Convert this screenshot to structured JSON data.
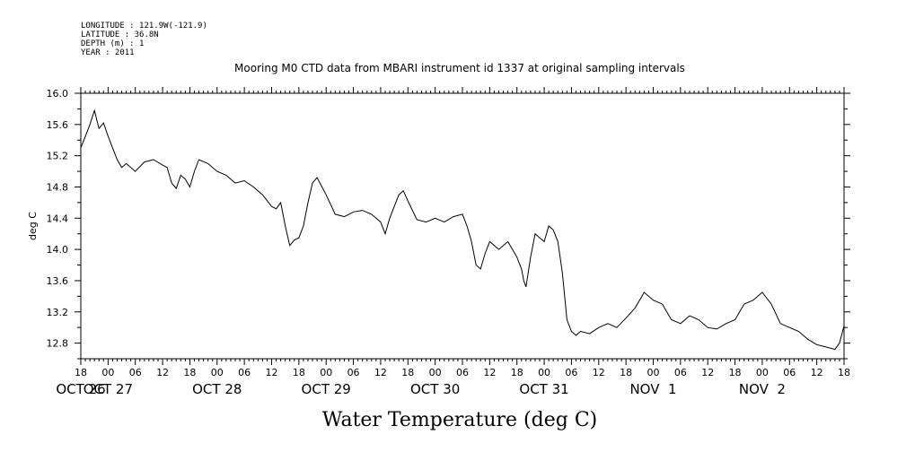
{
  "header": {
    "longitude": "LONGITUDE : 121.9W(-121.9)",
    "latitude": "LATITUDE : 36.8N",
    "depth": "DEPTH (m) : 1",
    "year": "YEAR : 2011"
  },
  "chart_data": {
    "type": "line",
    "title": "Mooring M0 CTD data from MBARI instrument id 1337 at original sampling intervals",
    "xlabel": "Water Temperature (deg C)",
    "ylabel": "deg C",
    "ylim": [
      12.6,
      16.0
    ],
    "yticks": [
      "12.8",
      "13.2",
      "13.6",
      "14.0",
      "14.4",
      "14.8",
      "15.2",
      "15.6",
      "16.0"
    ],
    "xlim": [
      "2011-10-26T18:00",
      "2011-11-02T18:00"
    ],
    "xtick_hours": [
      "18",
      "00",
      "06",
      "12",
      "18",
      "00",
      "06",
      "12",
      "18",
      "00",
      "06",
      "12",
      "18",
      "00",
      "06",
      "12",
      "18",
      "00",
      "06",
      "12",
      "18",
      "00",
      "06",
      "12",
      "18",
      "00",
      "06",
      "12",
      "18"
    ],
    "day_labels": [
      "OCT 26",
      "OCT 27",
      "OCT 28",
      "OCT 29",
      "OCT 30",
      "OCT 31",
      "NOV  1",
      "NOV  2"
    ],
    "grid": false,
    "series": [
      {
        "x": [
          "2011-10-26T18:00",
          "2011-10-26T19:00",
          "2011-10-26T20:00",
          "2011-10-26T21:00",
          "2011-10-26T22:00",
          "2011-10-26T23:00",
          "2011-10-27T00:00",
          "2011-10-27T01:00",
          "2011-10-27T02:00",
          "2011-10-27T03:00",
          "2011-10-27T04:00",
          "2011-10-27T06:00",
          "2011-10-27T08:00",
          "2011-10-27T10:00",
          "2011-10-27T12:00",
          "2011-10-27T13:00",
          "2011-10-27T14:00",
          "2011-10-27T15:00",
          "2011-10-27T16:00",
          "2011-10-27T17:00",
          "2011-10-27T18:00",
          "2011-10-27T19:00",
          "2011-10-27T20:00",
          "2011-10-27T22:00",
          "2011-10-28T00:00",
          "2011-10-28T02:00",
          "2011-10-28T04:00",
          "2011-10-28T06:00",
          "2011-10-28T08:00",
          "2011-10-28T10:00",
          "2011-10-28T12:00",
          "2011-10-28T13:00",
          "2011-10-28T14:00",
          "2011-10-28T15:00",
          "2011-10-28T16:00",
          "2011-10-28T17:00",
          "2011-10-28T18:00",
          "2011-10-28T19:00",
          "2011-10-28T20:00",
          "2011-10-28T21:00",
          "2011-10-28T22:00",
          "2011-10-29T00:00",
          "2011-10-29T02:00",
          "2011-10-29T04:00",
          "2011-10-29T06:00",
          "2011-10-29T08:00",
          "2011-10-29T10:00",
          "2011-10-29T12:00",
          "2011-10-29T13:00",
          "2011-10-29T14:00",
          "2011-10-29T15:00",
          "2011-10-29T16:00",
          "2011-10-29T17:00",
          "2011-10-29T18:00",
          "2011-10-29T19:00",
          "2011-10-29T20:00",
          "2011-10-29T22:00",
          "2011-10-30T00:00",
          "2011-10-30T02:00",
          "2011-10-30T04:00",
          "2011-10-30T06:00",
          "2011-10-30T07:00",
          "2011-10-30T08:00",
          "2011-10-30T09:00",
          "2011-10-30T10:00",
          "2011-10-30T11:00",
          "2011-10-30T12:00",
          "2011-10-30T14:00",
          "2011-10-30T16:00",
          "2011-10-30T17:00",
          "2011-10-30T18:00",
          "2011-10-30T19:00",
          "2011-10-30T19:30",
          "2011-10-30T20:00",
          "2011-10-30T21:00",
          "2011-10-30T22:00",
          "2011-10-30T23:00",
          "2011-10-31T00:00",
          "2011-10-31T01:00",
          "2011-10-31T02:00",
          "2011-10-31T03:00",
          "2011-10-31T04:00",
          "2011-10-31T05:00",
          "2011-10-31T06:00",
          "2011-10-31T07:00",
          "2011-10-31T08:00",
          "2011-10-31T10:00",
          "2011-10-31T12:00",
          "2011-10-31T14:00",
          "2011-10-31T16:00",
          "2011-10-31T18:00",
          "2011-10-31T20:00",
          "2011-10-31T22:00",
          "2011-11-01T00:00",
          "2011-11-01T02:00",
          "2011-11-01T04:00",
          "2011-11-01T06:00",
          "2011-11-01T08:00",
          "2011-11-01T10:00",
          "2011-11-01T12:00",
          "2011-11-01T14:00",
          "2011-11-01T16:00",
          "2011-11-01T18:00",
          "2011-11-01T20:00",
          "2011-11-01T22:00",
          "2011-11-02T00:00",
          "2011-11-02T02:00",
          "2011-11-02T04:00",
          "2011-11-02T06:00",
          "2011-11-02T08:00",
          "2011-11-02T10:00",
          "2011-11-02T12:00",
          "2011-11-02T14:00",
          "2011-11-02T16:00",
          "2011-11-02T17:00",
          "2011-11-02T18:00"
        ],
        "y": [
          15.3,
          15.45,
          15.6,
          15.78,
          15.55,
          15.62,
          15.45,
          15.3,
          15.15,
          15.05,
          15.1,
          15.0,
          15.12,
          15.15,
          15.08,
          15.05,
          14.85,
          14.78,
          14.95,
          14.9,
          14.8,
          15.0,
          15.15,
          15.1,
          15.0,
          14.95,
          14.85,
          14.88,
          14.8,
          14.7,
          14.55,
          14.52,
          14.6,
          14.3,
          14.05,
          14.12,
          14.15,
          14.3,
          14.6,
          14.85,
          14.92,
          14.7,
          14.45,
          14.42,
          14.48,
          14.5,
          14.45,
          14.35,
          14.2,
          14.4,
          14.55,
          14.7,
          14.75,
          14.62,
          14.5,
          14.38,
          14.35,
          14.4,
          14.35,
          14.42,
          14.45,
          14.3,
          14.1,
          13.8,
          13.75,
          13.95,
          14.1,
          14.0,
          14.1,
          14.0,
          13.9,
          13.75,
          13.6,
          13.52,
          13.9,
          14.2,
          14.15,
          14.1,
          14.3,
          14.25,
          14.1,
          13.7,
          13.1,
          12.95,
          12.9,
          12.95,
          12.92,
          13.0,
          13.05,
          13.0,
          13.12,
          13.25,
          13.45,
          13.35,
          13.3,
          13.1,
          13.05,
          13.15,
          13.1,
          13.0,
          12.98,
          13.05,
          13.1,
          13.3,
          13.35,
          13.45,
          13.3,
          13.05,
          13.0,
          12.95,
          12.85,
          12.78,
          12.75,
          12.72,
          12.8,
          13.02
        ]
      }
    ]
  }
}
